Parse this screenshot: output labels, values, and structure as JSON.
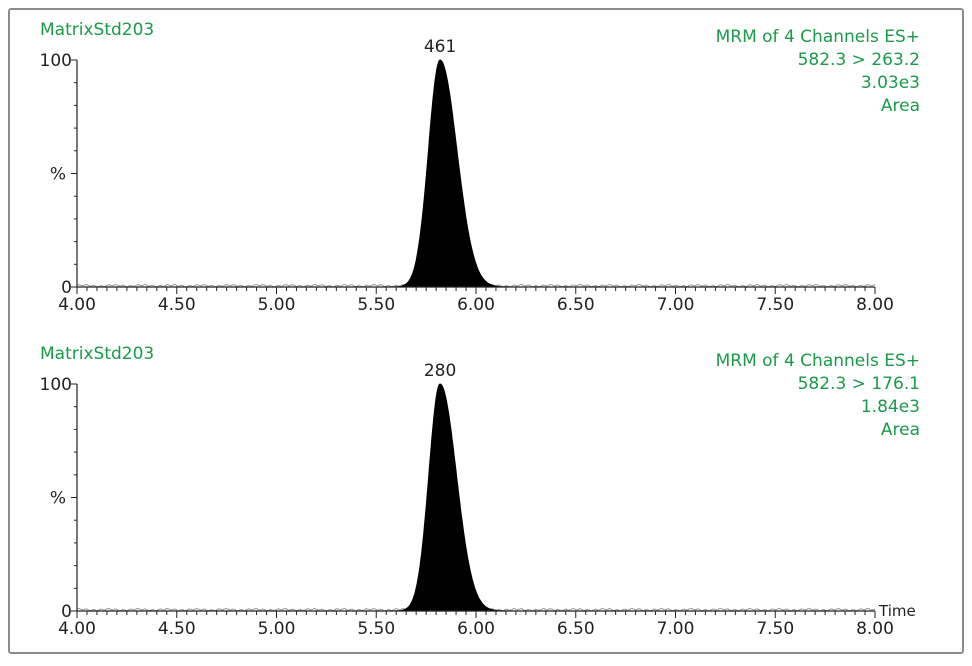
{
  "chart_data": [
    {
      "type": "line",
      "sample": "MatrixStd203",
      "info": [
        "MRM of 4 Channels ES+",
        "582.3 > 263.2",
        "3.03e3",
        "Area"
      ],
      "peak_label": "461",
      "peak": {
        "rt": 5.82,
        "height": 100,
        "sigma": 0.058
      },
      "xlim": [
        4.0,
        8.0
      ],
      "ylim": [
        0,
        100
      ],
      "x_ticks": [
        "4.00",
        "4.50",
        "5.00",
        "5.50",
        "6.00",
        "6.50",
        "7.00",
        "7.50",
        "8.00"
      ],
      "y_ticks": [
        "0",
        "100"
      ],
      "ylabel": "%",
      "xlabel": "",
      "fill": "#000000"
    },
    {
      "type": "line",
      "sample": "MatrixStd203",
      "info": [
        "MRM of 4 Channels ES+",
        "582.3 > 176.1",
        "1.84e3",
        "Area"
      ],
      "peak_label": "280",
      "peak": {
        "rt": 5.82,
        "height": 100,
        "sigma": 0.056
      },
      "xlim": [
        4.0,
        8.0
      ],
      "ylim": [
        0,
        100
      ],
      "x_ticks": [
        "4.00",
        "4.50",
        "5.00",
        "5.50",
        "6.00",
        "6.50",
        "7.00",
        "7.50",
        "8.00"
      ],
      "y_ticks": [
        "0",
        "100"
      ],
      "ylabel": "%",
      "xlabel": "Time",
      "fill": "#000000"
    }
  ]
}
